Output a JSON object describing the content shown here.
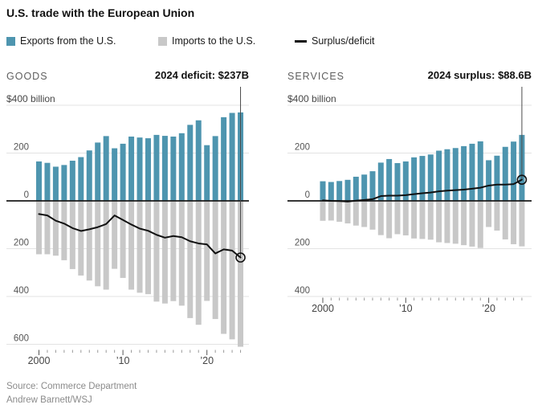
{
  "title": "U.S. trade with the European Union",
  "legend": {
    "items": [
      {
        "label": "Exports from the U.S.",
        "swatch": "square",
        "color": "#4e95af"
      },
      {
        "label": "Imports to the U.S.",
        "swatch": "square",
        "color": "#c8c8c8"
      },
      {
        "label": "Surplus/deficit",
        "swatch": "line",
        "color": "#111111"
      }
    ]
  },
  "source": "Source: Commerce Department",
  "credit": "Andrew Barnett/WSJ",
  "colors": {
    "exports": "#4e95af",
    "imports": "#c8c8c8",
    "balance_line": "#111111",
    "gridline": "#e3e3e3",
    "zero_axis": "#1a1a1a",
    "annotation_line": "#4a4a4a",
    "axis_text": "#555555",
    "year_text": "#444444",
    "tick_minor": "#999999",
    "tick_major": "#555555"
  },
  "chart_data": [
    {
      "type": "bar",
      "panel_label": "GOODS",
      "annotation": "2024 deficit: $237B",
      "y_axis_range": [
        -600,
        400
      ],
      "grid": true,
      "y_ticks": [
        {
          "value": 400,
          "label": "$400 billion"
        },
        {
          "value": 200,
          "label": "200"
        },
        {
          "value": 0,
          "label": "0"
        },
        {
          "value": -200,
          "label": "200"
        },
        {
          "value": -400,
          "label": "400"
        },
        {
          "value": -600,
          "label": "600"
        }
      ],
      "x": [
        2000,
        2001,
        2002,
        2003,
        2004,
        2005,
        2006,
        2007,
        2008,
        2009,
        2010,
        2011,
        2012,
        2013,
        2014,
        2015,
        2016,
        2017,
        2018,
        2019,
        2020,
        2021,
        2022,
        2023,
        2024
      ],
      "x_tick_labels": [
        {
          "year": 2000,
          "label": "2000"
        },
        {
          "year": 2010,
          "label": "’10"
        },
        {
          "year": 2020,
          "label": "’20"
        }
      ],
      "series": [
        {
          "name": "Exports from the U.S.",
          "values": [
            165,
            159,
            143,
            150,
            168,
            183,
            211,
            244,
            271,
            220,
            239,
            269,
            265,
            262,
            276,
            272,
            269,
            283,
            318,
            337,
            233,
            271,
            350,
            368,
            370
          ]
        },
        {
          "name": "Imports to the U.S.",
          "values": [
            220,
            220,
            226,
            245,
            282,
            309,
            330,
            354,
            368,
            281,
            319,
            368,
            381,
            387,
            418,
            426,
            416,
            435,
            487,
            515,
            415,
            491,
            553,
            576,
            607
          ]
        },
        {
          "name": "Surplus/deficit",
          "values": [
            -55,
            -61,
            -83,
            -95,
            -114,
            -126,
            -119,
            -110,
            -97,
            -61,
            -80,
            -99,
            -116,
            -125,
            -142,
            -154,
            -147,
            -152,
            -169,
            -178,
            -182,
            -220,
            -203,
            -208,
            -237
          ]
        }
      ]
    },
    {
      "type": "bar",
      "panel_label": "SERVICES",
      "annotation": "2024 surplus: $88.6B",
      "y_axis_range": [
        -400,
        400
      ],
      "grid": true,
      "y_ticks": [
        {
          "value": 400,
          "label": "$400 billion"
        },
        {
          "value": 200,
          "label": "200"
        },
        {
          "value": 0,
          "label": "0"
        },
        {
          "value": -200,
          "label": "200"
        },
        {
          "value": -400,
          "label": "400"
        }
      ],
      "x": [
        2000,
        2001,
        2002,
        2003,
        2004,
        2005,
        2006,
        2007,
        2008,
        2009,
        2010,
        2011,
        2012,
        2013,
        2014,
        2015,
        2016,
        2017,
        2018,
        2019,
        2020,
        2021,
        2022,
        2023,
        2024
      ],
      "x_tick_labels": [
        {
          "year": 2000,
          "label": "2000"
        },
        {
          "year": 2010,
          "label": "’10"
        },
        {
          "year": 2020,
          "label": "’20"
        }
      ],
      "series": [
        {
          "name": "Exports from the U.S.",
          "values": [
            82,
            79,
            83,
            88,
            101,
            110,
            124,
            160,
            175,
            158,
            165,
            182,
            188,
            194,
            210,
            216,
            221,
            229,
            239,
            249,
            170,
            189,
            226,
            248,
            276
          ]
        },
        {
          "name": "Imports to the U.S.",
          "values": [
            80,
            79,
            84,
            91,
            100,
            106,
            117,
            140,
            153,
            136,
            141,
            154,
            156,
            159,
            170,
            173,
            176,
            182,
            188,
            194,
            106,
            121,
            158,
            178,
            187
          ]
        },
        {
          "name": "Surplus/deficit",
          "values": [
            2,
            0,
            -1,
            -3,
            1,
            4,
            7,
            20,
            22,
            22,
            24,
            28,
            32,
            35,
            40,
            43,
            45,
            47,
            51,
            55,
            64,
            68,
            68,
            70,
            88.6
          ]
        }
      ]
    }
  ]
}
